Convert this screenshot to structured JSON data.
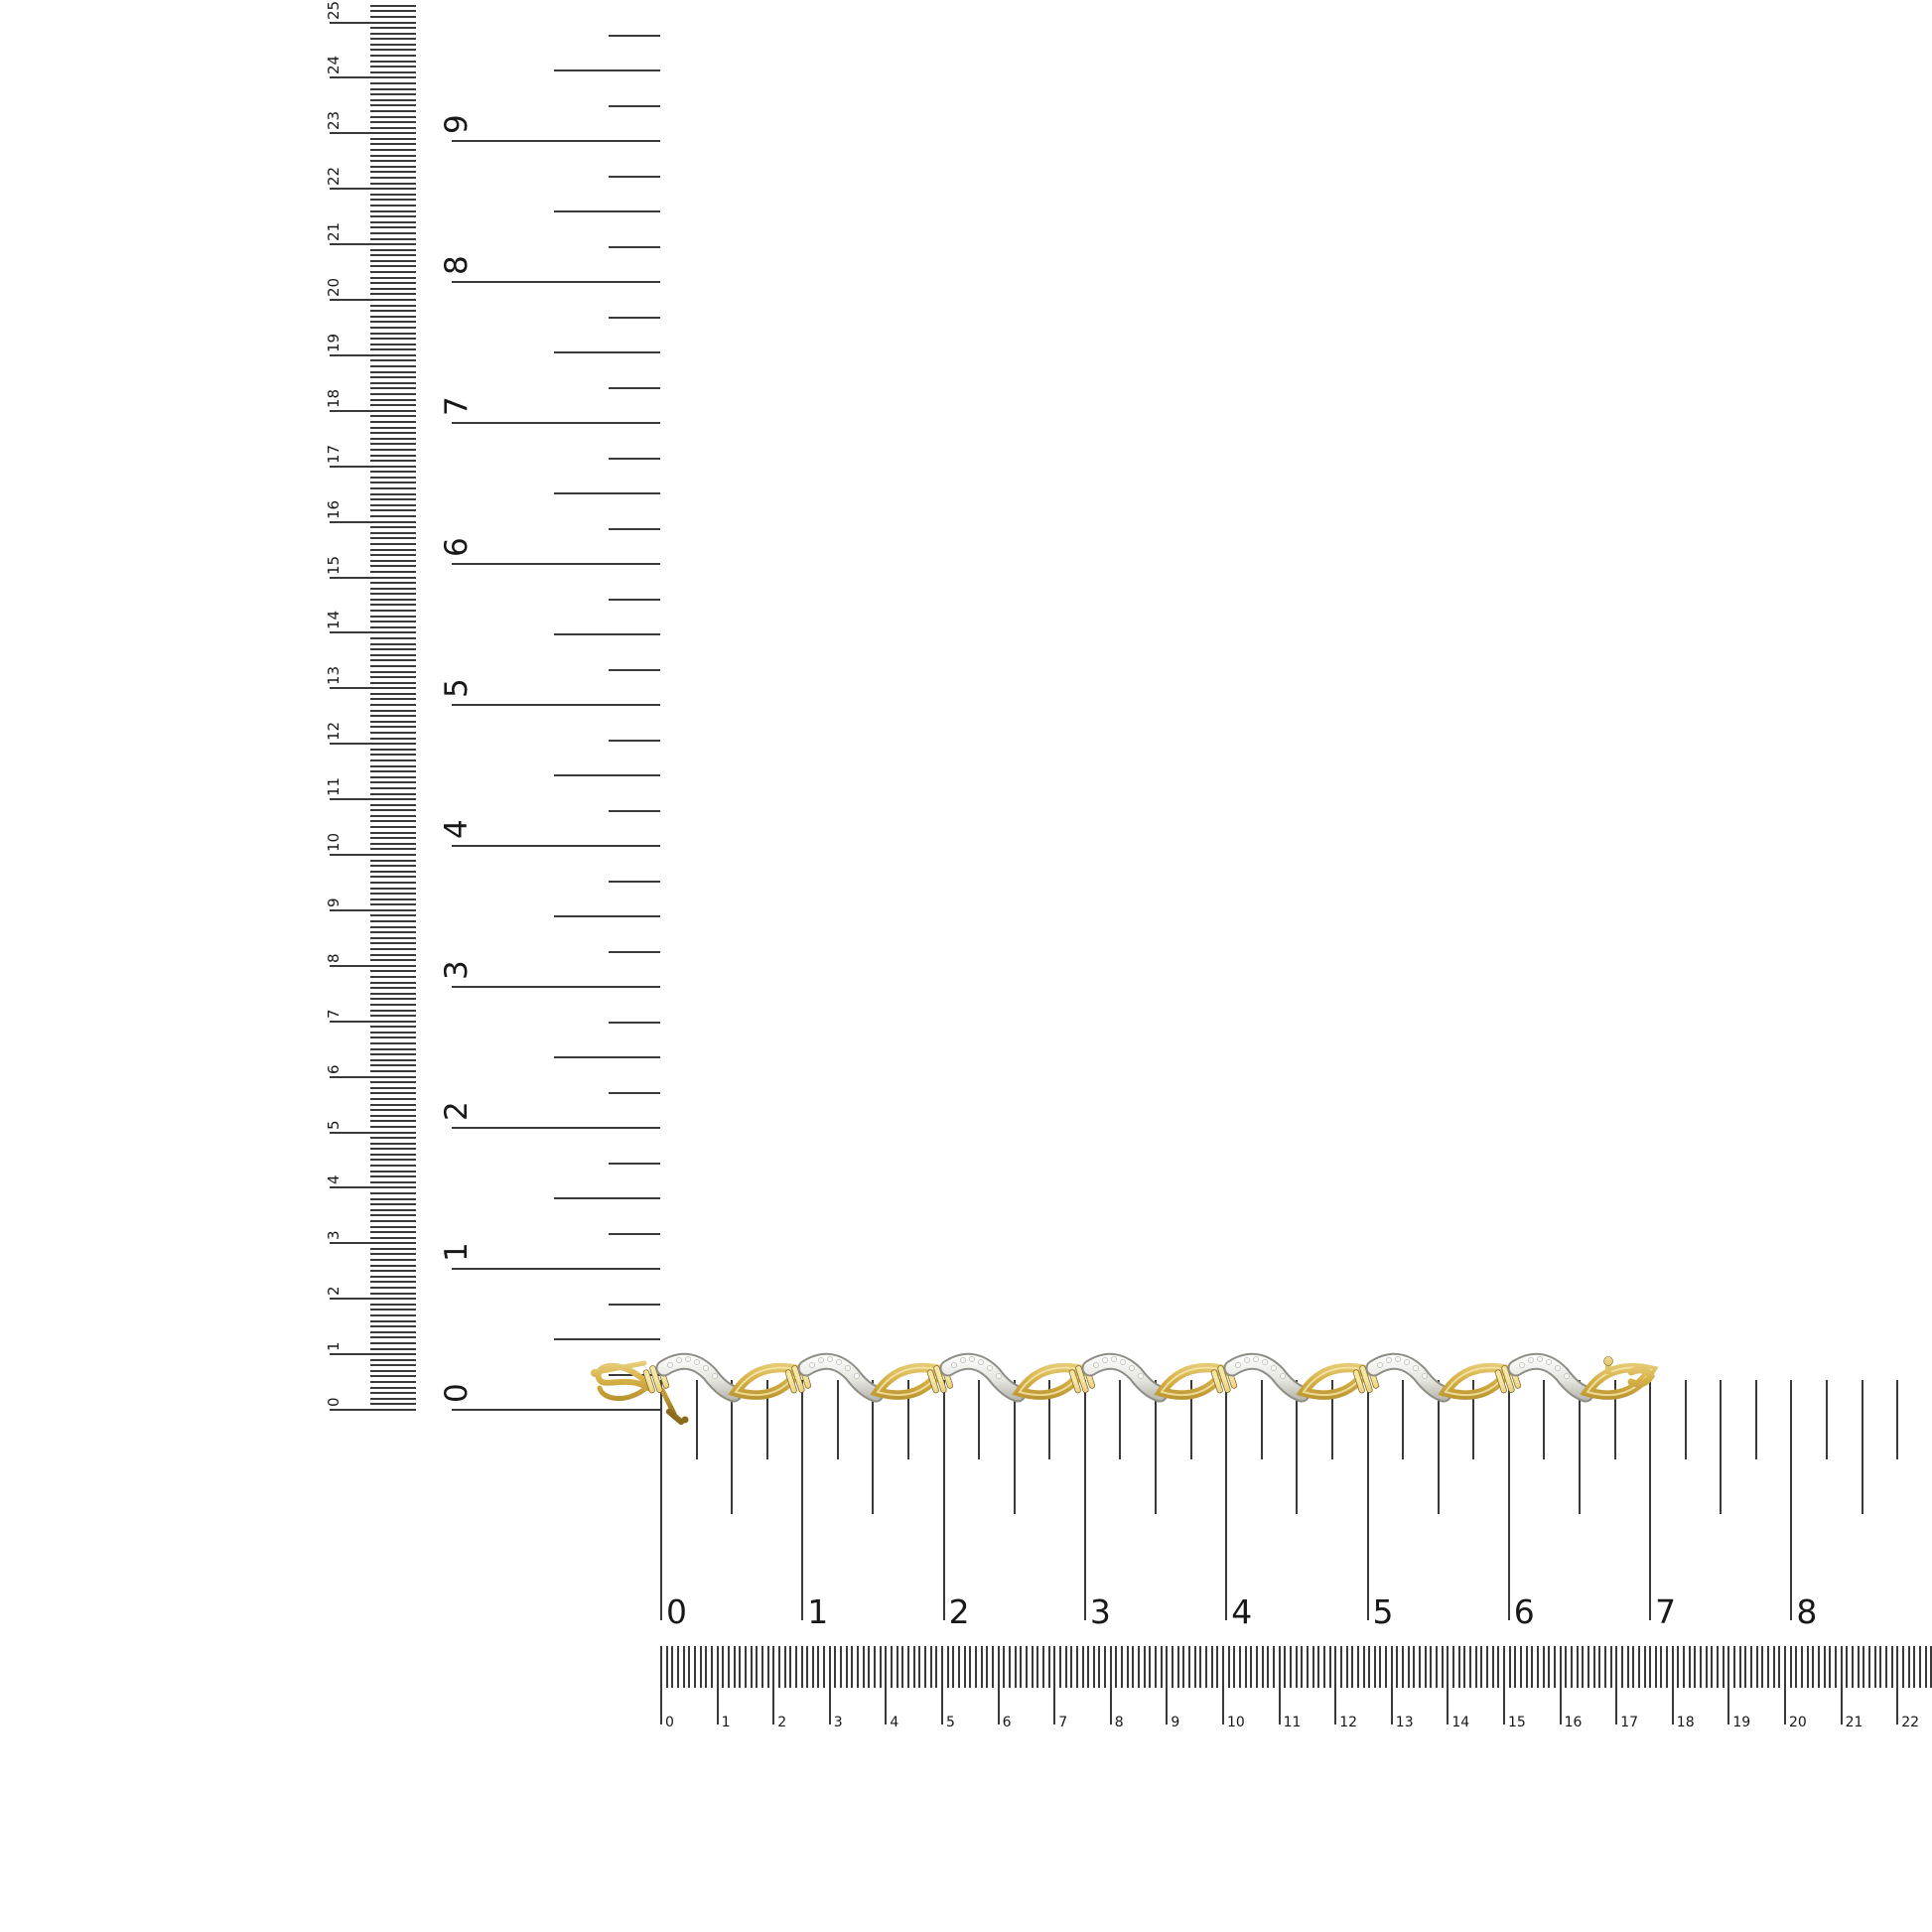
{
  "background_color": "#ffffff",
  "tick_color": "#3a3a3a",
  "label_color": "#181818",
  "rulers": {
    "vertical_cm": {
      "unit": "cm",
      "position": "far-left-vertical",
      "labels": [
        "0",
        "1",
        "2",
        "3",
        "4",
        "5",
        "6",
        "7",
        "8",
        "9",
        "10",
        "11",
        "12",
        "13",
        "14",
        "15",
        "16",
        "17",
        "18",
        "19",
        "20",
        "21",
        "22",
        "23",
        "24",
        "25"
      ]
    },
    "vertical_inch": {
      "unit": "inch",
      "position": "left-inner-vertical",
      "labels": [
        "0",
        "1",
        "2",
        "3",
        "4",
        "5",
        "6",
        "7",
        "8",
        "9"
      ]
    },
    "horizontal_inch": {
      "unit": "inch",
      "position": "below-bracelet-horizontal",
      "labels": [
        "0",
        "1",
        "2",
        "3",
        "4",
        "5",
        "6",
        "7",
        "8"
      ]
    },
    "horizontal_cm": {
      "unit": "cm",
      "position": "bottom-horizontal",
      "labels": [
        "0",
        "1",
        "2",
        "3",
        "4",
        "5",
        "6",
        "7",
        "8",
        "9",
        "10",
        "11",
        "12",
        "13",
        "14",
        "15",
        "16",
        "17",
        "18",
        "19",
        "20",
        "21",
        "22"
      ]
    }
  },
  "bracelet": {
    "description": "yellow gold S-link bracelet with white-gold diamond accent swooshes, ribbed bar spacers, fold-over clasp with safety pin",
    "diamond_link_count": 7,
    "span_on_inch_ruler": "0 to 7",
    "gold_color_hex": "#d7b249",
    "gold_dark_hex": "#8a691c",
    "white_metal_hex": "#e6e6e0",
    "diamond_color_hex": "#f8f8f4"
  }
}
